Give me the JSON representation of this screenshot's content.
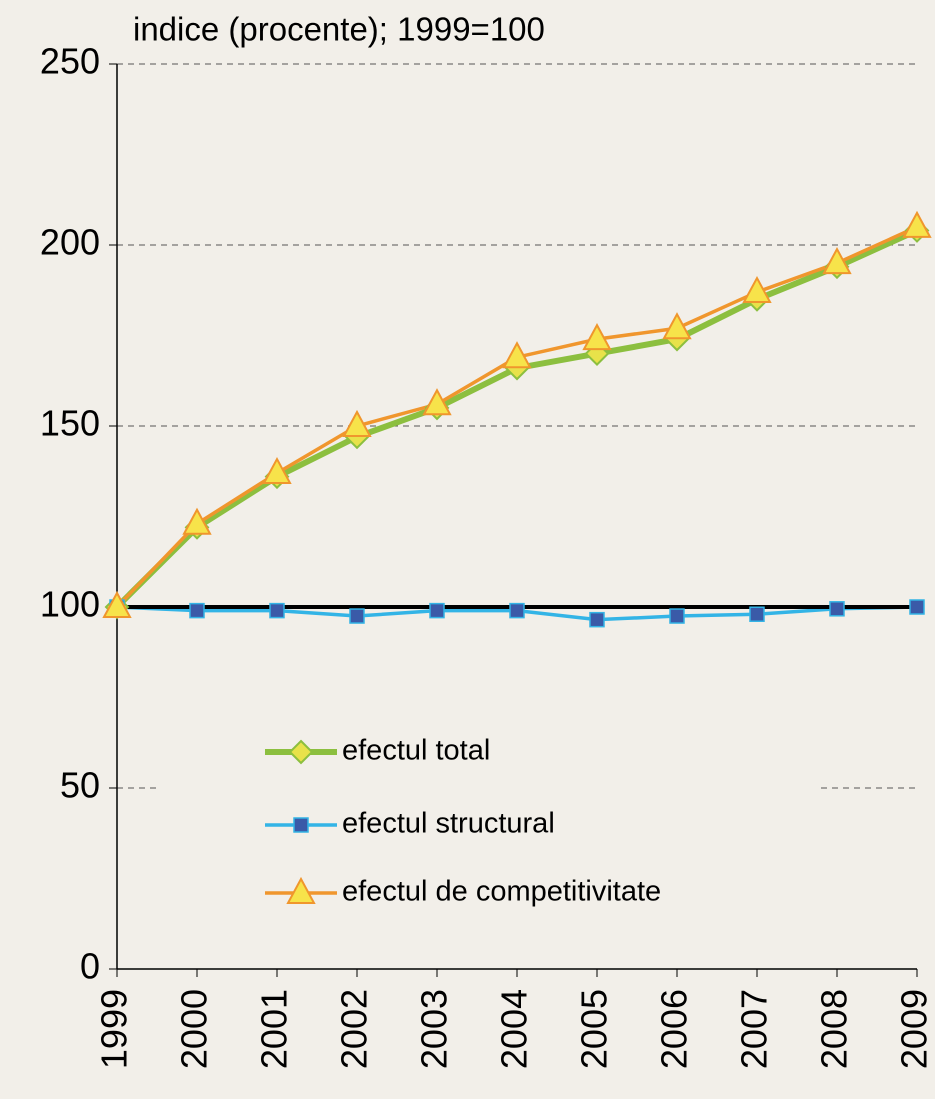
{
  "chart_data": {
    "type": "line",
    "subtitle": "indice (procente); 1999=100",
    "categories": [
      "1999",
      "2000",
      "2001",
      "2002",
      "2003",
      "2004",
      "2005",
      "2006",
      "2007",
      "2008",
      "2009"
    ],
    "series": [
      {
        "name": "efectul total",
        "color": "#8cbf3f",
        "marker": "diamond",
        "values": [
          100,
          122,
          136,
          147,
          155,
          166,
          170,
          174,
          185,
          194,
          204
        ]
      },
      {
        "name": "efectul structural",
        "color": "#33b4e6",
        "marker": "square",
        "values": [
          100,
          99,
          99,
          97.5,
          99,
          99,
          96.5,
          97.5,
          98,
          99.5,
          100
        ]
      },
      {
        "name": "efectul de competitivitate",
        "color": "#f0962d",
        "marker": "triangle",
        "values": [
          100,
          123,
          137,
          150,
          156,
          169,
          174,
          177,
          187,
          195,
          205
        ]
      }
    ],
    "reference_line": 100,
    "ylim": [
      0,
      250
    ],
    "yticks": [
      0,
      50,
      100,
      150,
      200,
      250
    ],
    "grid": true
  }
}
